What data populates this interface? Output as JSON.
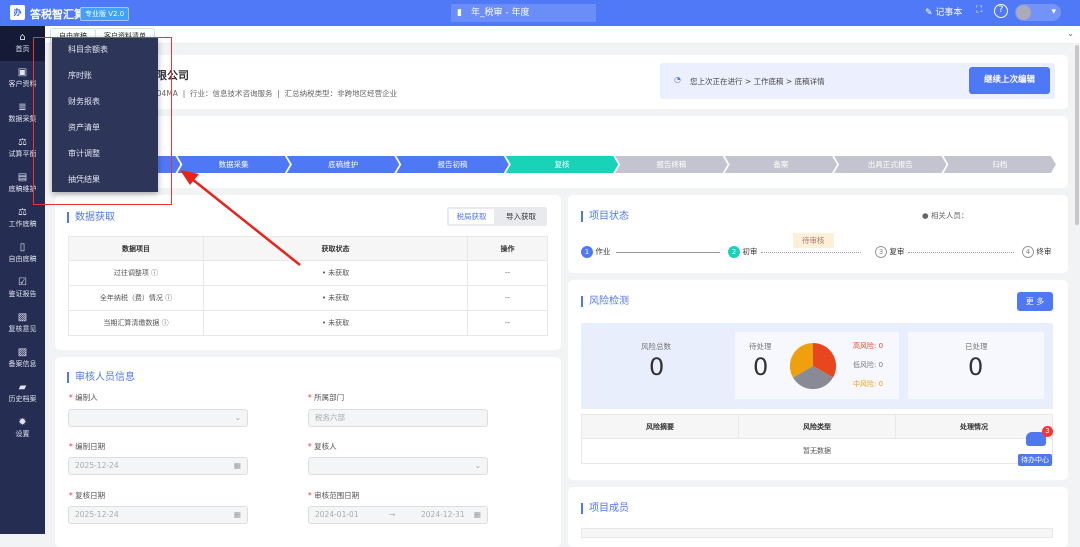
{
  "header": {
    "app_name": "答税智汇算",
    "version": "专业版 V2.0",
    "doc_title": "年_税审 - 年度",
    "notepad": "记事本"
  },
  "sidebar": {
    "items": [
      {
        "label": "首页",
        "icon": "home-icon"
      },
      {
        "label": "客户资料",
        "icon": "client-icon"
      },
      {
        "label": "数据采集",
        "icon": "database-icon"
      },
      {
        "label": "试算平衡",
        "icon": "scale-icon"
      },
      {
        "label": "底稿维护",
        "icon": "file-icon"
      },
      {
        "label": "工作底稿",
        "icon": "scale-icon"
      },
      {
        "label": "自由底稿",
        "icon": "book-icon"
      },
      {
        "label": "鉴证报告",
        "icon": "check-icon"
      },
      {
        "label": "复核意见",
        "icon": "review-icon"
      },
      {
        "label": "备案信息",
        "icon": "record-icon"
      },
      {
        "label": "历史档案",
        "icon": "folder-icon"
      },
      {
        "label": "设置",
        "icon": "gear-icon"
      }
    ]
  },
  "tabs": [
    "自由底稿",
    "客户资料清单"
  ],
  "dropdown": [
    "科目余额表",
    "序时账",
    "财务报表",
    "资产清单",
    "审计调整",
    "抽凭结果"
  ],
  "company": {
    "name": "有限公司",
    "code": "304MA",
    "industry": "行业：信息技术咨询服务",
    "tax_type": "汇总纳税类型：非跨地区经营企业",
    "last_edit": "您上次正在进行 > 工作底稿 > 底稿详情",
    "continue": "继续上次编辑"
  },
  "steps": [
    {
      "label": "",
      "state": "done"
    },
    {
      "label": "数据采集",
      "state": "done"
    },
    {
      "label": "底稿维护",
      "state": "done"
    },
    {
      "label": "报告初稿",
      "state": "done"
    },
    {
      "label": "复核",
      "state": "current"
    },
    {
      "label": "报告终稿",
      "state": "todo"
    },
    {
      "label": "备案",
      "state": "todo"
    },
    {
      "label": "出具正式报告",
      "state": "todo"
    },
    {
      "label": "归档",
      "state": "todo"
    }
  ],
  "data_fetch": {
    "title": "数据获取",
    "btn_tax": "税局获取",
    "btn_import": "导入获取",
    "headers": [
      "数据项目",
      "获取状态",
      "操作"
    ],
    "rows": [
      [
        "过往调整项 ⓘ",
        "• 未获取",
        "--"
      ],
      [
        "全年纳税（费）情况 ⓘ",
        "• 未获取",
        "--"
      ],
      [
        "当期汇算清缴数据 ⓘ",
        "• 未获取",
        "--"
      ]
    ]
  },
  "reviewers": {
    "title": "审核人员信息",
    "preparer": "编制人",
    "dept": "所属部门",
    "dept_value": "税务六部",
    "prep_date": "编制日期",
    "prep_date_value": "2025-12-24",
    "reviewer": "复核人",
    "review_date": "复核日期",
    "review_date_value": "2025-12-24",
    "range": "审核范围日期",
    "range_start": "2024-01-01",
    "range_end": "2024-12-31"
  },
  "status": {
    "title": "项目状态",
    "people": "相关人员：",
    "pending": "待审核",
    "nodes": [
      {
        "n": "1",
        "label": "作业"
      },
      {
        "n": "2",
        "label": "初审"
      },
      {
        "n": "③",
        "label": "复审"
      },
      {
        "n": "④",
        "label": "终审"
      }
    ]
  },
  "risk": {
    "title": "风险检测",
    "more": "更 多",
    "total_label": "风险总数",
    "total": "0",
    "pending_label": "待处理",
    "pending": "0",
    "high": "高风险: 0",
    "low": "低风险: 0",
    "mid": "中风险: 0",
    "done_label": "已处理",
    "done": "0",
    "headers": [
      "风险摘要",
      "风险类型",
      "处理情况"
    ],
    "empty": "暂无数据",
    "colors": {
      "high": "#e8461e",
      "low": "#8a8a96",
      "mid": "#f0a00c"
    }
  },
  "todo": {
    "label": "待办中心",
    "badge": "3"
  },
  "members": {
    "title": "项目成员"
  }
}
